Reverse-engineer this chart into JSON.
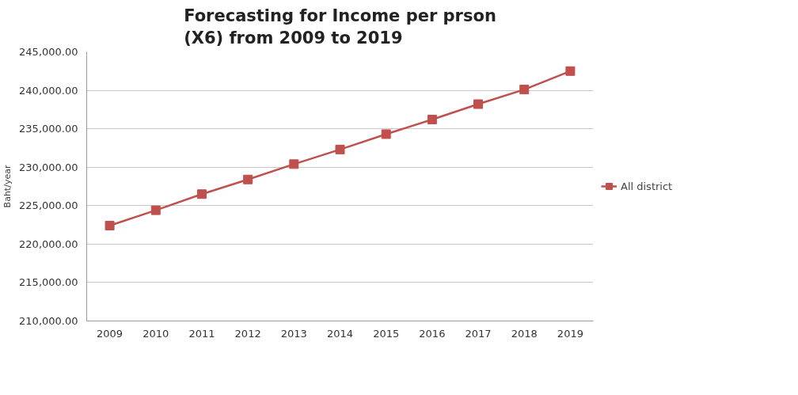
{
  "chart_data": {
    "type": "line",
    "title": "Forecasting for Income per prson\n(X6) from 2009 to 2019",
    "ylabel": "Baht/year",
    "categories": [
      "2009",
      "2010",
      "2011",
      "2012",
      "2013",
      "2014",
      "2015",
      "2016",
      "2017",
      "2018",
      "2019"
    ],
    "series": [
      {
        "name": "All district",
        "color": "#c0504d",
        "values": [
          222400,
          224400,
          226500,
          228400,
          230400,
          232300,
          234300,
          236200,
          238200,
          240100,
          242500
        ]
      }
    ],
    "ylim": [
      210000,
      245000
    ],
    "yticks": [
      {
        "value": 210000,
        "label": "210,000.00"
      },
      {
        "value": 215000,
        "label": "215,000.00"
      },
      {
        "value": 220000,
        "label": "220,000.00"
      },
      {
        "value": 225000,
        "label": "225,000.00"
      },
      {
        "value": 230000,
        "label": "230,000.00"
      },
      {
        "value": 235000,
        "label": "235,000.00"
      },
      {
        "value": 240000,
        "label": "240,000.00"
      },
      {
        "value": 245000,
        "label": "245,000.00"
      }
    ],
    "grid": "y",
    "legend": "right",
    "marker": "square",
    "line_style": "solid"
  }
}
